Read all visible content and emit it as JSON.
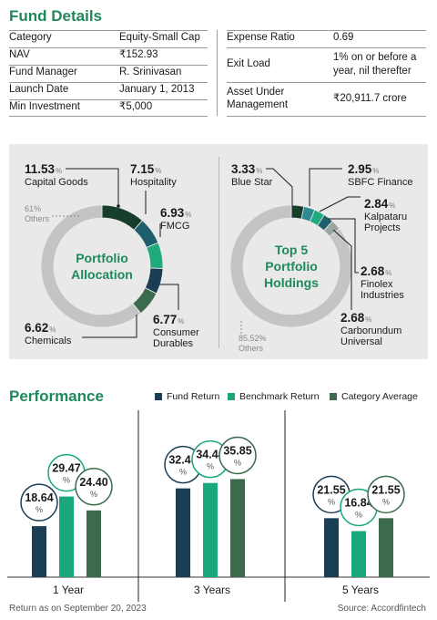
{
  "fund_details": {
    "title": "Fund Details",
    "left_rows": [
      {
        "label": "Category",
        "value": "Equity-Small Cap"
      },
      {
        "label": "NAV",
        "value": "₹152.93"
      },
      {
        "label": "Fund Manager",
        "value": "R. Srinivasan"
      },
      {
        "label": "Launch Date",
        "value": "January 1, 2013"
      },
      {
        "label": "Min Investment",
        "value": "₹5,000"
      }
    ],
    "right_rows": [
      {
        "label": "Expense Ratio",
        "value": "0.69"
      },
      {
        "label": "Exit Load",
        "value_line1": "1% on or before a",
        "value_line2": "year, nil therefter"
      },
      {
        "label_line1": "Asset Under",
        "label_line2": "Management",
        "value": "₹20,911.7 crore"
      }
    ]
  },
  "performance": {
    "title": "Performance",
    "legend": [
      "Fund Return",
      "Benchmark Return",
      "Category Average"
    ],
    "footer_left": "Return as on September 20, 2023",
    "footer_right": "Source: Accordfintech"
  },
  "colors": {
    "dark_green": "#173e2a",
    "teal": "#1c5e6b",
    "green": "#1fab7e",
    "medium_green": "#3a6b4c",
    "navy": "#1b3d55",
    "light_teal": "#2d8a92",
    "gray": "#c4c4c4",
    "title_green": "#1e8a5a",
    "fund_return": "#1a3e56",
    "benchmark_return": "#1aa77b",
    "category_average": "#3b6b4c"
  },
  "chart_data": [
    {
      "type": "pie",
      "title": "Portfolio Allocation",
      "labels": [
        "Capital Goods",
        "Hospitality",
        "FMCG",
        "Consumer Durables",
        "Chemicals",
        "Others"
      ],
      "values": [
        11.53,
        7.15,
        6.93,
        6.77,
        6.62,
        61
      ],
      "value_text": [
        "11.53",
        "7.15",
        "6.93",
        "6.77",
        "6.62",
        "61"
      ],
      "percent_sign": "%",
      "label_lines": [
        [
          "Capital Goods"
        ],
        [
          "Hospitality"
        ],
        [
          "FMCG"
        ],
        [
          "Consumer",
          "Durables"
        ],
        [
          "Chemicals"
        ],
        [
          "Others"
        ]
      ],
      "colors": [
        "#173e2a",
        "#1c5e6b",
        "#1fab7e",
        "#1b3d55",
        "#3a6b4c",
        "#c4c4c4"
      ]
    },
    {
      "type": "pie",
      "title": "Top 5 Portfolio Holdings",
      "labels": [
        "Blue Star",
        "SBFC Finance",
        "Kalpataru Projects",
        "Finolex Industries",
        "Carborundum Universal",
        "Others"
      ],
      "values": [
        3.33,
        2.95,
        2.84,
        2.68,
        2.68,
        85.52
      ],
      "value_text": [
        "3.33",
        "2.95",
        "2.84",
        "2.68",
        "2.68",
        "85.52"
      ],
      "percent_sign": "%",
      "label_lines": [
        [
          "Blue Star"
        ],
        [
          "SBFC Finance"
        ],
        [
          "Kalpataru",
          "Projects"
        ],
        [
          "Finolex",
          "Industries"
        ],
        [
          "Carborundum",
          "Universal"
        ],
        [
          "Others"
        ]
      ],
      "colors": [
        "#173e2a",
        "#2d8a92",
        "#1fab7e",
        "#1c5e6b",
        "#9aa7a0",
        "#c4c4c4"
      ]
    },
    {
      "type": "bar",
      "title": "Performance",
      "categories": [
        "1 Year",
        "3 Years",
        "5 Years"
      ],
      "series": [
        {
          "name": "Fund Return",
          "values": [
            18.64,
            32.45,
            21.55
          ]
        },
        {
          "name": "Benchmark Return",
          "values": [
            29.47,
            34.44,
            16.84
          ]
        },
        {
          "name": "Category Average",
          "values": [
            24.4,
            35.85,
            21.55
          ]
        }
      ],
      "value_labels": [
        [
          "18.64",
          "29.47",
          "24.40"
        ],
        [
          "32.45",
          "34.44",
          "35.85"
        ],
        [
          "21.55",
          "16.84",
          "21.55"
        ]
      ],
      "unit": "%"
    }
  ]
}
